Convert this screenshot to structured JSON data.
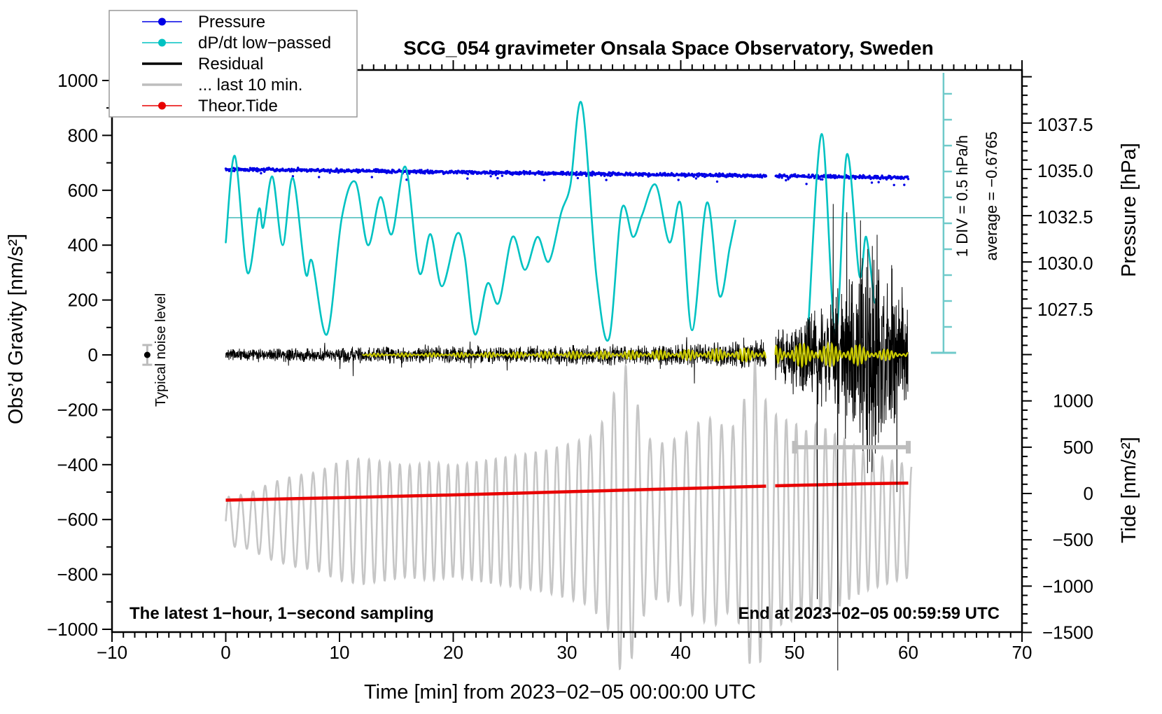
{
  "title": "SCG_054 gravimeter Onsala Space Observatory, Sweden",
  "legend": {
    "entries": [
      {
        "label": "Pressure",
        "color": "#0000e6",
        "marker": true,
        "line_width": 1.5
      },
      {
        "label": "dP/dt low−passed",
        "color": "#00c2c2",
        "marker": true,
        "line_width": 1.5
      },
      {
        "label": "Residual",
        "color": "#000000",
        "marker": false,
        "line_width": 3.5
      },
      {
        "label": "... last 10 min.",
        "color": "#bdbdbd",
        "marker": false,
        "line_width": 3.5
      },
      {
        "label": "Theor.Tide",
        "color": "#e80000",
        "marker": true,
        "line_width": 1.5
      }
    ]
  },
  "chart_data": {
    "type": "line",
    "title": "SCG_054 gravimeter Onsala Space Observatory, Sweden",
    "x_axis": {
      "label": "Time [min] from 2023−02−05 00:00:00 UTC",
      "range": [
        -10,
        70
      ],
      "major_tick_step": 10,
      "minor_tick_step": 1,
      "tick_labels": [
        "−10",
        "0",
        "10",
        "20",
        "30",
        "40",
        "50",
        "60",
        "70"
      ],
      "tick_values": [
        -10,
        0,
        10,
        20,
        30,
        40,
        50,
        60,
        70
      ]
    },
    "y_axis_gravity": {
      "label": "Obs’d Gravity [nm/s²]",
      "range": [
        -1000,
        1000
      ],
      "major_tick_step": 200,
      "minor_tick_step": 100,
      "tick_labels": [
        "1000",
        "800",
        "600",
        "400",
        "200",
        "0",
        "−200",
        "−400",
        "−600",
        "−800",
        "−1000"
      ],
      "tick_values": [
        1000,
        800,
        600,
        400,
        200,
        0,
        -200,
        -400,
        -600,
        -800,
        -1000
      ]
    },
    "y_axis_pressure": {
      "label": "Pressure [hPa]",
      "tick_labels": [
        "1037.5",
        "1035.0",
        "1032.5",
        "1030.0",
        "1027.5"
      ],
      "tick_values": [
        1037.5,
        1035.0,
        1032.5,
        1030.0,
        1027.5
      ]
    },
    "y_axis_tide": {
      "label": "Tide [nm/s²]",
      "tick_labels": [
        "1000",
        "500",
        "0",
        "−500",
        "−1000",
        "−1500"
      ],
      "tick_values": [
        1000,
        500,
        0,
        -500,
        -1000,
        -1500
      ]
    },
    "gap_minutes": [
      47.5,
      48.3
    ],
    "annotations": {
      "typical_noise": {
        "text": "Typical noise level",
        "minute": -6.9,
        "gravity": 0,
        "error": 36
      },
      "div_scale_label": "1 DIV = 0.5 hPa/h",
      "average_label": "average = −0.6765",
      "bottom_left": "The latest 1−hour, 1−second sampling",
      "bottom_right": "End at 2023−02−05 00:59:59 UTC",
      "refline_gravity": 500,
      "refline_from_minute": 0.1,
      "div_ruler_minute": 63.1,
      "last10_bar": {
        "from_minute": 50,
        "to_minute": 60,
        "tide_level": 500
      }
    },
    "series": [
      {
        "name": "pressure",
        "type": "scatter",
        "color": "#0000e6",
        "axis": "pressure",
        "start_hpa": 1035.08,
        "slope_hpa_per_min": -0.0075,
        "noise_hpa": 0.09,
        "outlier_rate": 0.025,
        "sample_step_min": 0.05,
        "range_min": [
          0,
          60
        ]
      },
      {
        "name": "dpdt_lowpassed",
        "type": "line",
        "color": "#00c2c2",
        "axis": "gravity",
        "width": 2.6,
        "keypoints_pre_gap": [
          [
            0,
            410
          ],
          [
            0.8,
            725
          ],
          [
            1.9,
            300
          ],
          [
            2.9,
            530
          ],
          [
            3.3,
            465
          ],
          [
            4.1,
            650
          ],
          [
            5.0,
            400
          ],
          [
            5.9,
            645
          ],
          [
            7.0,
            300
          ],
          [
            7.6,
            340
          ],
          [
            8.9,
            75
          ],
          [
            10.2,
            500
          ],
          [
            11.4,
            630
          ],
          [
            12.5,
            400
          ],
          [
            13.6,
            575
          ],
          [
            14.6,
            440
          ],
          [
            15.8,
            685
          ],
          [
            17.0,
            300
          ],
          [
            18.0,
            440
          ],
          [
            19.0,
            250
          ],
          [
            20.3,
            440
          ],
          [
            21.0,
            360
          ],
          [
            21.9,
            75
          ],
          [
            23.0,
            260
          ],
          [
            24.0,
            190
          ],
          [
            25.2,
            430
          ],
          [
            26.3,
            310
          ],
          [
            27.4,
            430
          ],
          [
            28.4,
            340
          ],
          [
            29.5,
            520
          ],
          [
            30.3,
            620
          ],
          [
            31.3,
            915
          ],
          [
            32.6,
            280
          ],
          [
            33.7,
            60
          ],
          [
            34.8,
            530
          ],
          [
            35.8,
            430
          ],
          [
            36.6,
            510
          ],
          [
            37.8,
            620
          ],
          [
            39.0,
            410
          ],
          [
            40.0,
            550
          ],
          [
            41.0,
            90
          ],
          [
            42.3,
            555
          ],
          [
            43.4,
            215
          ],
          [
            44.3,
            390
          ],
          [
            44.8,
            490
          ]
        ],
        "keypoints_post_gap": [
          [
            51.2,
            95
          ],
          [
            52.4,
            805
          ],
          [
            53.6,
            70
          ],
          [
            54.6,
            730
          ],
          [
            55.7,
            290
          ],
          [
            56.3,
            430
          ],
          [
            57.0,
            190
          ]
        ]
      },
      {
        "name": "residual",
        "type": "noise-line",
        "color": "#000000",
        "axis": "gravity",
        "width": 1,
        "center_gravity": 0,
        "sample_step_min": 0.02,
        "range_min": [
          0,
          60
        ],
        "amplitude_envelope": [
          [
            0,
            26
          ],
          [
            5,
            28
          ],
          [
            10,
            33
          ],
          [
            15,
            35
          ],
          [
            20,
            38
          ],
          [
            25,
            38
          ],
          [
            30,
            40
          ],
          [
            35,
            43
          ],
          [
            38,
            46
          ],
          [
            42,
            50
          ],
          [
            44,
            55
          ],
          [
            47.5,
            60
          ],
          [
            48.3,
            110
          ],
          [
            50,
            150
          ],
          [
            52,
            215
          ],
          [
            53.5,
            250
          ],
          [
            55,
            375
          ],
          [
            56,
            465
          ],
          [
            57,
            500
          ],
          [
            58,
            430
          ],
          [
            58.5,
            350
          ],
          [
            59,
            300
          ],
          [
            60,
            275
          ]
        ],
        "spikes": [
          [
            52.0,
            -890
          ],
          [
            53.4,
            550
          ],
          [
            53.8,
            -1150
          ],
          [
            54.6,
            520
          ],
          [
            55.8,
            490
          ],
          [
            59.0,
            -500
          ]
        ]
      },
      {
        "name": "residual_smoothed",
        "type": "wave",
        "color": "#c9c900",
        "axis": "gravity",
        "width": 2.2,
        "center_gravity": 0,
        "period_min": 0.35,
        "sample_step_min": 0.02,
        "range_min": [
          12,
          60
        ],
        "amplitude_envelope": [
          [
            12,
            5
          ],
          [
            20,
            8
          ],
          [
            25,
            10
          ],
          [
            30,
            13
          ],
          [
            35,
            15
          ],
          [
            40,
            18
          ],
          [
            43,
            22
          ],
          [
            47.5,
            25
          ],
          [
            48.3,
            35
          ],
          [
            50,
            40
          ],
          [
            52,
            45
          ],
          [
            54,
            40
          ],
          [
            56,
            35
          ],
          [
            57,
            25
          ],
          [
            58,
            20
          ],
          [
            59,
            15
          ],
          [
            60,
            12
          ]
        ]
      },
      {
        "name": "last_10_min",
        "type": "wave",
        "color": "#c6c6c6",
        "axis": "tide",
        "width": 2.6,
        "center_tide": -300,
        "period_min": 0.95,
        "sample_step_min": 0.02,
        "range_min": [
          0,
          60.3
        ],
        "no_gap": true,
        "amplitude_envelope": [
          [
            0,
            260
          ],
          [
            2,
            300
          ],
          [
            4,
            415
          ],
          [
            6,
            490
          ],
          [
            8,
            530
          ],
          [
            10,
            640
          ],
          [
            12,
            680
          ],
          [
            14,
            640
          ],
          [
            16,
            600
          ],
          [
            18,
            640
          ],
          [
            20,
            600
          ],
          [
            22,
            640
          ],
          [
            24,
            680
          ],
          [
            26,
            720
          ],
          [
            28,
            760
          ],
          [
            30,
            830
          ],
          [
            32,
            910
          ],
          [
            33.5,
            1130
          ],
          [
            35,
            1740
          ],
          [
            36,
            1360
          ],
          [
            37,
            910
          ],
          [
            38,
            830
          ],
          [
            40,
            910
          ],
          [
            41.5,
            1060
          ],
          [
            43,
            1130
          ],
          [
            44,
            980
          ],
          [
            45,
            1060
          ],
          [
            46.5,
            1740
          ],
          [
            47.5,
            1290
          ],
          [
            48.5,
            1130
          ],
          [
            50,
            1060
          ],
          [
            51,
            980
          ],
          [
            52,
            1060
          ],
          [
            53,
            980
          ],
          [
            54,
            910
          ],
          [
            55,
            830
          ],
          [
            56,
            760
          ],
          [
            57,
            720
          ],
          [
            58,
            680
          ],
          [
            59,
            640
          ],
          [
            60.3,
            600
          ]
        ]
      },
      {
        "name": "theor_tide",
        "type": "line",
        "color": "#e80000",
        "axis": "tide",
        "width": 4.5,
        "keypoints_pre_gap": [
          [
            0,
            -72
          ],
          [
            10,
            -45
          ],
          [
            20,
            -15
          ],
          [
            30,
            19
          ],
          [
            40,
            53
          ],
          [
            47.5,
            79
          ]
        ],
        "keypoints_post_gap": [
          [
            48.3,
            83
          ],
          [
            55,
            102
          ],
          [
            60,
            113
          ]
        ]
      }
    ]
  }
}
